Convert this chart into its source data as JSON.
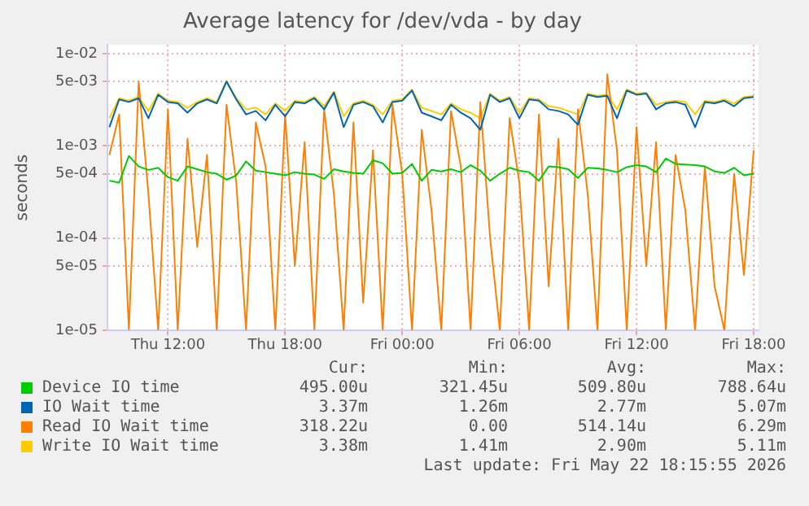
{
  "chart_data": {
    "type": "line",
    "title": "Average latency for /dev/vda - by day",
    "ylabel": "seconds",
    "log": "y",
    "grid": true,
    "legend": "bottom",
    "marker": "none",
    "line_style": "solid",
    "x": [
      "2026-05-21T09:00",
      "2026-05-21T09:30",
      "2026-05-21T10:00",
      "2026-05-21T10:30",
      "2026-05-21T11:00",
      "2026-05-21T11:30",
      "2026-05-21T12:00",
      "2026-05-21T12:30",
      "2026-05-21T13:00",
      "2026-05-21T13:30",
      "2026-05-21T14:00",
      "2026-05-21T14:30",
      "2026-05-21T15:00",
      "2026-05-21T15:30",
      "2026-05-21T16:00",
      "2026-05-21T16:30",
      "2026-05-21T17:00",
      "2026-05-21T17:30",
      "2026-05-21T18:00",
      "2026-05-21T18:30",
      "2026-05-21T19:00",
      "2026-05-21T19:30",
      "2026-05-21T20:00",
      "2026-05-21T20:30",
      "2026-05-21T21:00",
      "2026-05-21T21:30",
      "2026-05-21T22:00",
      "2026-05-21T22:30",
      "2026-05-21T23:00",
      "2026-05-21T23:30",
      "2026-05-22T00:00",
      "2026-05-22T00:30",
      "2026-05-22T01:00",
      "2026-05-22T01:30",
      "2026-05-22T02:00",
      "2026-05-22T02:30",
      "2026-05-22T03:00",
      "2026-05-22T03:30",
      "2026-05-22T04:00",
      "2026-05-22T04:30",
      "2026-05-22T05:00",
      "2026-05-22T05:30",
      "2026-05-22T06:00",
      "2026-05-22T06:30",
      "2026-05-22T07:00",
      "2026-05-22T07:30",
      "2026-05-22T08:00",
      "2026-05-22T08:30",
      "2026-05-22T09:00",
      "2026-05-22T09:30",
      "2026-05-22T10:00",
      "2026-05-22T10:30",
      "2026-05-22T11:00",
      "2026-05-22T11:30",
      "2026-05-22T12:00",
      "2026-05-22T12:30",
      "2026-05-22T13:00",
      "2026-05-22T13:30",
      "2026-05-22T14:00",
      "2026-05-22T14:30",
      "2026-05-22T15:00",
      "2026-05-22T15:30",
      "2026-05-22T16:00",
      "2026-05-22T16:30",
      "2026-05-22T17:00",
      "2026-05-22T17:30",
      "2026-05-22T18:00"
    ],
    "xlim": [
      "2026-05-21T08:54",
      "2026-05-22T18:15"
    ],
    "xticks": [
      {
        "value": "2026-05-21T12:00",
        "label": "Thu 12:00"
      },
      {
        "value": "2026-05-21T18:00",
        "label": "Thu 18:00"
      },
      {
        "value": "2026-05-22T00:00",
        "label": "Fri 00:00"
      },
      {
        "value": "2026-05-22T06:00",
        "label": "Fri 06:00"
      },
      {
        "value": "2026-05-22T12:00",
        "label": "Fri 12:00"
      },
      {
        "value": "2026-05-22T18:00",
        "label": "Fri 18:00"
      }
    ],
    "ylim": [
      1e-05,
      0.0125
    ],
    "yticks": [
      {
        "value": 1e-05,
        "label": "1e-05"
      },
      {
        "value": 5e-05,
        "label": "5e-05"
      },
      {
        "value": 0.0001,
        "label": "1e-04"
      },
      {
        "value": 0.0005,
        "label": "5e-04"
      },
      {
        "value": 0.001,
        "label": "1e-03"
      },
      {
        "value": 0.005,
        "label": "5e-03"
      },
      {
        "value": 0.01,
        "label": "1e-02"
      }
    ],
    "series": [
      {
        "name": "Device IO time",
        "color": "#00cc00",
        "values": [
          0.00042,
          0.0004,
          0.00078,
          0.0006,
          0.00055,
          0.00058,
          0.00046,
          0.00042,
          0.0006,
          0.00056,
          0.00052,
          0.0005,
          0.00043,
          0.00048,
          0.00068,
          0.00054,
          0.00052,
          0.0005,
          0.00048,
          0.00052,
          0.0005,
          0.00049,
          0.00044,
          0.00056,
          0.00053,
          0.00051,
          0.0005,
          0.0007,
          0.00065,
          0.0005,
          0.00051,
          0.00064,
          0.00042,
          0.00055,
          0.00053,
          0.00056,
          0.00052,
          0.00062,
          0.00054,
          0.00042,
          0.0005,
          0.00058,
          0.00054,
          0.00052,
          0.00042,
          0.0006,
          0.00059,
          0.00056,
          0.00045,
          0.00058,
          0.00057,
          0.00055,
          0.00052,
          0.00059,
          0.00062,
          0.0006,
          0.00052,
          0.00073,
          0.00064,
          0.00063,
          0.00062,
          0.0006,
          0.00053,
          0.00051,
          0.00058,
          0.00048,
          0.0005
        ]
      },
      {
        "name": "IO Wait time",
        "color": "#0066b3",
        "values": [
          0.0016,
          0.0032,
          0.003,
          0.0033,
          0.002,
          0.0036,
          0.003,
          0.0029,
          0.0023,
          0.0029,
          0.0032,
          0.0029,
          0.005,
          0.0032,
          0.0022,
          0.0024,
          0.0019,
          0.0028,
          0.0021,
          0.003,
          0.0029,
          0.0033,
          0.0025,
          0.0038,
          0.0016,
          0.0028,
          0.003,
          0.0027,
          0.0018,
          0.003,
          0.0031,
          0.004,
          0.0023,
          0.0021,
          0.0019,
          0.0028,
          0.0023,
          0.002,
          0.0015,
          0.0036,
          0.003,
          0.0033,
          0.002,
          0.0032,
          0.0031,
          0.0025,
          0.0024,
          0.0022,
          0.0017,
          0.0036,
          0.0034,
          0.0035,
          0.002,
          0.004,
          0.0036,
          0.0037,
          0.0025,
          0.0029,
          0.003,
          0.0028,
          0.0016,
          0.003,
          0.0029,
          0.0031,
          0.0027,
          0.0033,
          0.0034
        ]
      },
      {
        "name": "Read IO Wait time",
        "color": "#ff8000",
        "values": [
          0.0008,
          0.0022,
          1e-05,
          0.005,
          0.0003,
          1e-05,
          0.0025,
          1e-05,
          0.0012,
          8e-05,
          0.0008,
          1e-05,
          0.0028,
          0.0004,
          1e-05,
          0.0018,
          0.0006,
          1e-05,
          0.0022,
          5e-05,
          0.0011,
          1e-05,
          0.0025,
          0.0003,
          1e-05,
          0.0018,
          2e-05,
          0.0009,
          1e-05,
          0.0028,
          0.0005,
          1e-05,
          0.0015,
          0.0002,
          1e-05,
          0.0024,
          0.0006,
          1e-05,
          0.003,
          0.0001,
          1e-05,
          0.002,
          0.0004,
          1e-05,
          0.0022,
          3e-05,
          0.0012,
          1e-05,
          0.0025,
          0.0003,
          1e-05,
          0.006,
          0.0009,
          1e-05,
          0.0016,
          5e-05,
          0.0011,
          1e-05,
          0.0008,
          0.0002,
          1e-05,
          0.0006,
          3e-05,
          1e-05,
          0.0005,
          4e-05,
          0.0009
        ]
      },
      {
        "name": "Write IO Wait time",
        "color": "#ffcc00",
        "values": [
          0.002,
          0.0033,
          0.0031,
          0.0034,
          0.0024,
          0.0037,
          0.0031,
          0.003,
          0.0026,
          0.003,
          0.0033,
          0.003,
          0.0051,
          0.0033,
          0.0025,
          0.0026,
          0.0022,
          0.0029,
          0.0024,
          0.0031,
          0.003,
          0.0034,
          0.0027,
          0.0039,
          0.0021,
          0.0029,
          0.0031,
          0.0028,
          0.0022,
          0.0031,
          0.0032,
          0.0041,
          0.0026,
          0.0024,
          0.0022,
          0.0029,
          0.0025,
          0.0023,
          0.002,
          0.0037,
          0.0031,
          0.0034,
          0.0023,
          0.0033,
          0.0032,
          0.0027,
          0.0026,
          0.0024,
          0.0022,
          0.0037,
          0.0035,
          0.0036,
          0.0025,
          0.0041,
          0.0037,
          0.0038,
          0.0028,
          0.003,
          0.0031,
          0.003,
          0.0022,
          0.0031,
          0.003,
          0.0032,
          0.0029,
          0.0034,
          0.0035
        ]
      }
    ],
    "annotations": [
      "Cur:",
      "Min:",
      "Avg:",
      "Max:",
      "495.00u",
      "321.45u",
      "509.80u",
      "788.64u",
      "3.37m",
      "1.26m",
      "2.77m",
      "5.07m",
      "318.22u",
      "0.00",
      "514.14u",
      "6.29m",
      "3.38m",
      "1.41m",
      "2.90m",
      "5.11m",
      "Last update: Fri May 22 18:15:55 2026"
    ]
  }
}
